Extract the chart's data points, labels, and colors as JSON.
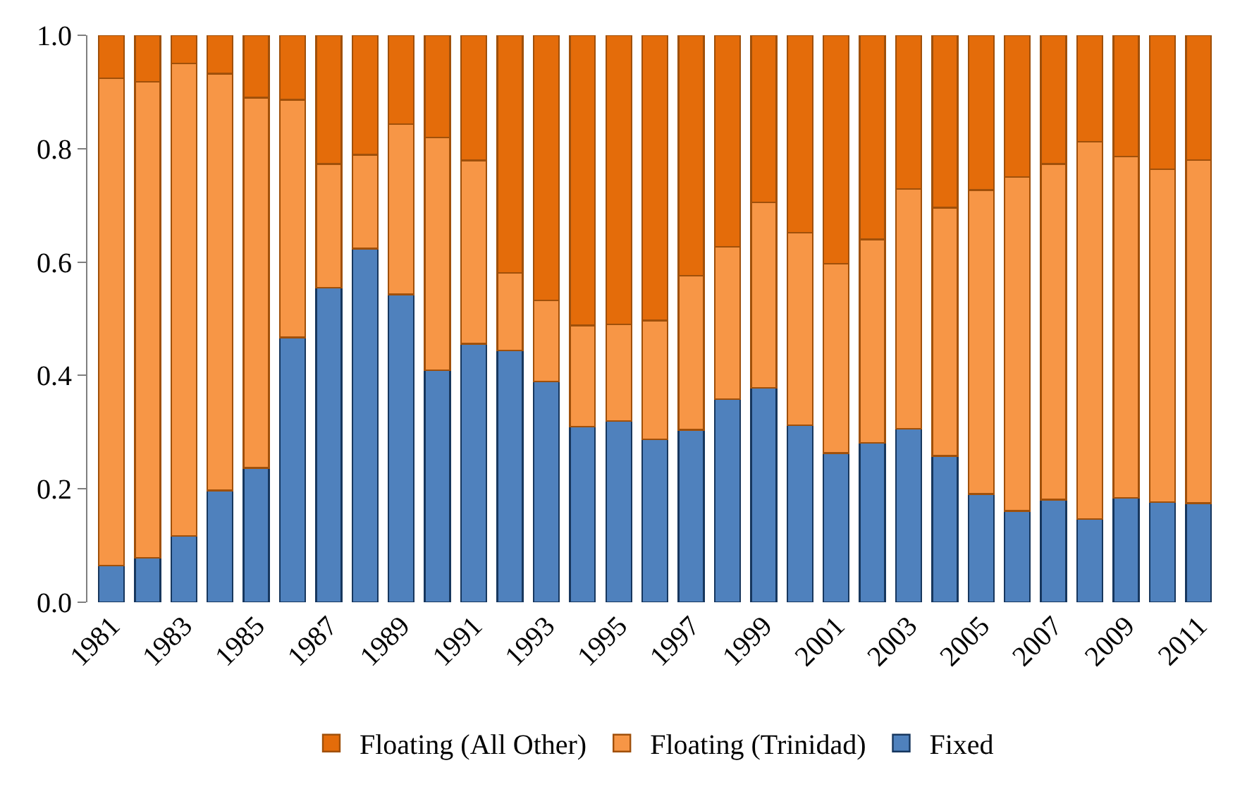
{
  "chart_data": {
    "type": "bar",
    "stacked": true,
    "categories": [
      "1981",
      null,
      "1983",
      null,
      "1985",
      null,
      "1987",
      null,
      "1989",
      null,
      "1991",
      null,
      "1993",
      null,
      "1995",
      null,
      "1997",
      null,
      "1999",
      null,
      "2001",
      null,
      "2003",
      null,
      "2005",
      null,
      "2007",
      null,
      "2009",
      null,
      "2011"
    ],
    "series": [
      {
        "name": "Fixed",
        "color": "#4f81bd",
        "values": [
          0.065,
          0.078,
          0.117,
          0.197,
          0.237,
          0.467,
          0.555,
          0.624,
          0.543,
          0.409,
          0.456,
          0.444,
          0.389,
          0.31,
          0.32,
          0.287,
          0.304,
          0.358,
          0.378,
          0.312,
          0.263,
          0.281,
          0.306,
          0.258,
          0.191,
          0.161,
          0.181,
          0.147,
          0.184,
          0.177,
          0.175
        ]
      },
      {
        "name": "Floating (Trinidad)",
        "color": "#f79646",
        "values": [
          0.859,
          0.84,
          0.833,
          0.735,
          0.653,
          0.419,
          0.218,
          0.165,
          0.3,
          0.411,
          0.323,
          0.137,
          0.143,
          0.178,
          0.17,
          0.21,
          0.272,
          0.269,
          0.327,
          0.34,
          0.334,
          0.359,
          0.423,
          0.438,
          0.536,
          0.589,
          0.592,
          0.665,
          0.602,
          0.587,
          0.605
        ]
      },
      {
        "name": "Floating (All Other)",
        "color": "#e46c0a",
        "values": [
          0.076,
          0.082,
          0.05,
          0.068,
          0.11,
          0.114,
          0.227,
          0.211,
          0.157,
          0.18,
          0.221,
          0.419,
          0.468,
          0.512,
          0.51,
          0.503,
          0.424,
          0.373,
          0.295,
          0.348,
          0.403,
          0.36,
          0.271,
          0.304,
          0.273,
          0.25,
          0.227,
          0.188,
          0.214,
          0.236,
          0.22
        ]
      }
    ],
    "ylim": [
      0,
      1
    ],
    "yticks": [
      {
        "value": 0,
        "label": "0.0"
      },
      {
        "value": 0.2,
        "label": "0.2"
      },
      {
        "value": 0.4,
        "label": "0.4"
      },
      {
        "value": 0.6,
        "label": "0.6"
      },
      {
        "value": 0.8,
        "label": "0.8"
      },
      {
        "value": 1,
        "label": "1.0"
      }
    ],
    "legend": "bottom"
  }
}
